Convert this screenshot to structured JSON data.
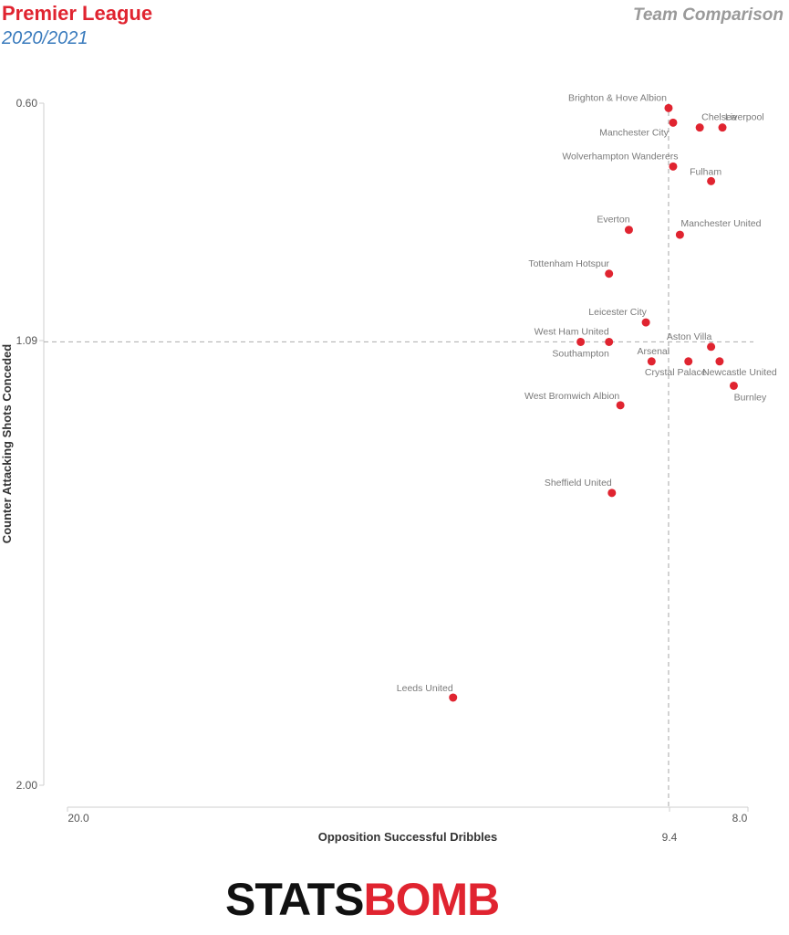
{
  "header": {
    "league": "Premier League",
    "season": "2020/2021",
    "comparison": "Team Comparison"
  },
  "brand": {
    "stats": "STATS",
    "bomb": "BOMB"
  },
  "colors": {
    "point": "#e02430",
    "title": "#e02430",
    "season": "#3a7bbd"
  },
  "chart_data": {
    "type": "scatter",
    "xlabel": "Opposition Successful Dribbles",
    "ylabel": "Counter Attacking Shots Conceded",
    "xlim": [
      20.0,
      8.0
    ],
    "ylim": [
      0.6,
      2.0
    ],
    "x_reversed": true,
    "y_reversed": true,
    "x_ticks": [
      "20.0",
      "9.4",
      "8.0"
    ],
    "y_ticks": [
      "0.60",
      "1.09",
      "2.00"
    ],
    "reference_lines": {
      "x": 9.4,
      "y": 1.09
    },
    "points": [
      {
        "team": "Brighton & Hove Albion",
        "x": 9.4,
        "y": 0.61
      },
      {
        "team": "Chelsea",
        "x": 8.85,
        "y": 0.65
      },
      {
        "team": "Liverpool",
        "x": 8.45,
        "y": 0.65
      },
      {
        "team": "Manchester City",
        "x": 9.32,
        "y": 0.64
      },
      {
        "team": "Wolverhampton Wanderers",
        "x": 9.32,
        "y": 0.73
      },
      {
        "team": "Fulham",
        "x": 8.65,
        "y": 0.76
      },
      {
        "team": "Everton",
        "x": 10.1,
        "y": 0.86
      },
      {
        "team": "Manchester United",
        "x": 9.2,
        "y": 0.87
      },
      {
        "team": "Tottenham Hotspur",
        "x": 10.45,
        "y": 0.95
      },
      {
        "team": "Leicester City",
        "x": 9.8,
        "y": 1.05
      },
      {
        "team": "West Ham United",
        "x": 10.45,
        "y": 1.09
      },
      {
        "team": "Southampton",
        "x": 10.95,
        "y": 1.09
      },
      {
        "team": "Aston Villa",
        "x": 8.65,
        "y": 1.1
      },
      {
        "team": "Arsenal",
        "x": 9.7,
        "y": 1.13
      },
      {
        "team": "Crystal Palace",
        "x": 9.05,
        "y": 1.13
      },
      {
        "team": "Newcastle United",
        "x": 8.5,
        "y": 1.13
      },
      {
        "team": "Burnley",
        "x": 8.25,
        "y": 1.18
      },
      {
        "team": "West Bromwich Albion",
        "x": 10.25,
        "y": 1.22
      },
      {
        "team": "Sheffield United",
        "x": 10.4,
        "y": 1.4
      },
      {
        "team": "Leeds United",
        "x": 13.2,
        "y": 1.82
      }
    ]
  }
}
